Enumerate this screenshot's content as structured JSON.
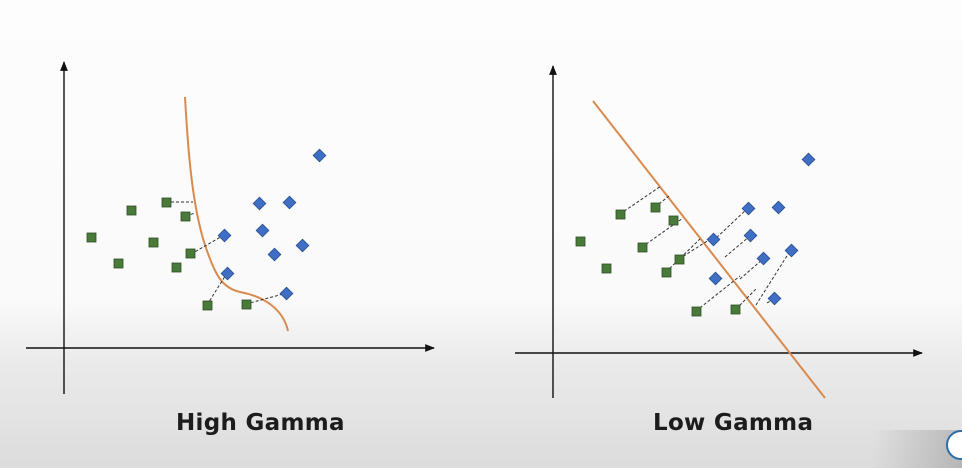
{
  "captions": {
    "left": "High Gamma",
    "right": "Low Gamma"
  },
  "colors": {
    "green_square": "#4a7a3a",
    "blue_diamond": "#3f6fc4",
    "boundary": "#d98a4e",
    "axis": "#111111",
    "dash": "#333333"
  },
  "icons": {
    "corner_logo": "circle-logo-icon"
  }
}
